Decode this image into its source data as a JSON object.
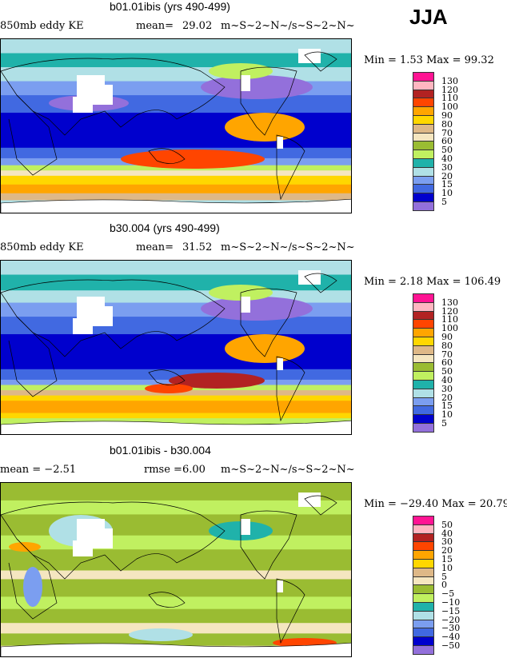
{
  "season": "JJA",
  "panels": [
    {
      "title": "b01.01ibis (yrs 490-499)",
      "left": "850mb eddy KE",
      "stat_label": "mean=",
      "stat_value": "29.02",
      "units": "m~S~2~N~/s~S~2~N~",
      "minmax": "Min =   1.53 Max =  99.32",
      "levels": [
        "130",
        "120",
        "110",
        "100",
        "90",
        "80",
        "70",
        "60",
        "50",
        "40",
        "30",
        "20",
        "15",
        "10",
        "5"
      ]
    },
    {
      "title": "b30.004 (yrs 490-499)",
      "left": "850mb eddy KE",
      "stat_label": "mean=",
      "stat_value": "31.52",
      "units": "m~S~2~N~/s~S~2~N~",
      "minmax": "Min =   2.18 Max = 106.49",
      "levels": [
        "130",
        "120",
        "110",
        "100",
        "90",
        "80",
        "70",
        "60",
        "50",
        "40",
        "30",
        "20",
        "15",
        "10",
        "5"
      ]
    },
    {
      "title": "b01.01ibis - b30.004",
      "left": "mean =  −2.51",
      "stat_label": "rmse =",
      "stat_value": "6.00",
      "units": "m~S~2~N~/s~S~2~N~",
      "minmax": "Min = −29.40 Max =  20.79",
      "levels": [
        "50",
        "40",
        "30",
        "20",
        "15",
        "10",
        "5",
        "0",
        "−5",
        "−10",
        "−15",
        "−20",
        "−30",
        "−40",
        "−50"
      ]
    }
  ],
  "colors": [
    "#ff1493",
    "#ffb6c1",
    "#b22222",
    "#ff4500",
    "#ffa500",
    "#ffd700",
    "#deb887",
    "#f5e6c0",
    "#9abc32",
    "#c0f060",
    "#20b2aa",
    "#b0e0e6",
    "#7b9ef0",
    "#4169e1",
    "#0000cd",
    "#9370db"
  ]
}
